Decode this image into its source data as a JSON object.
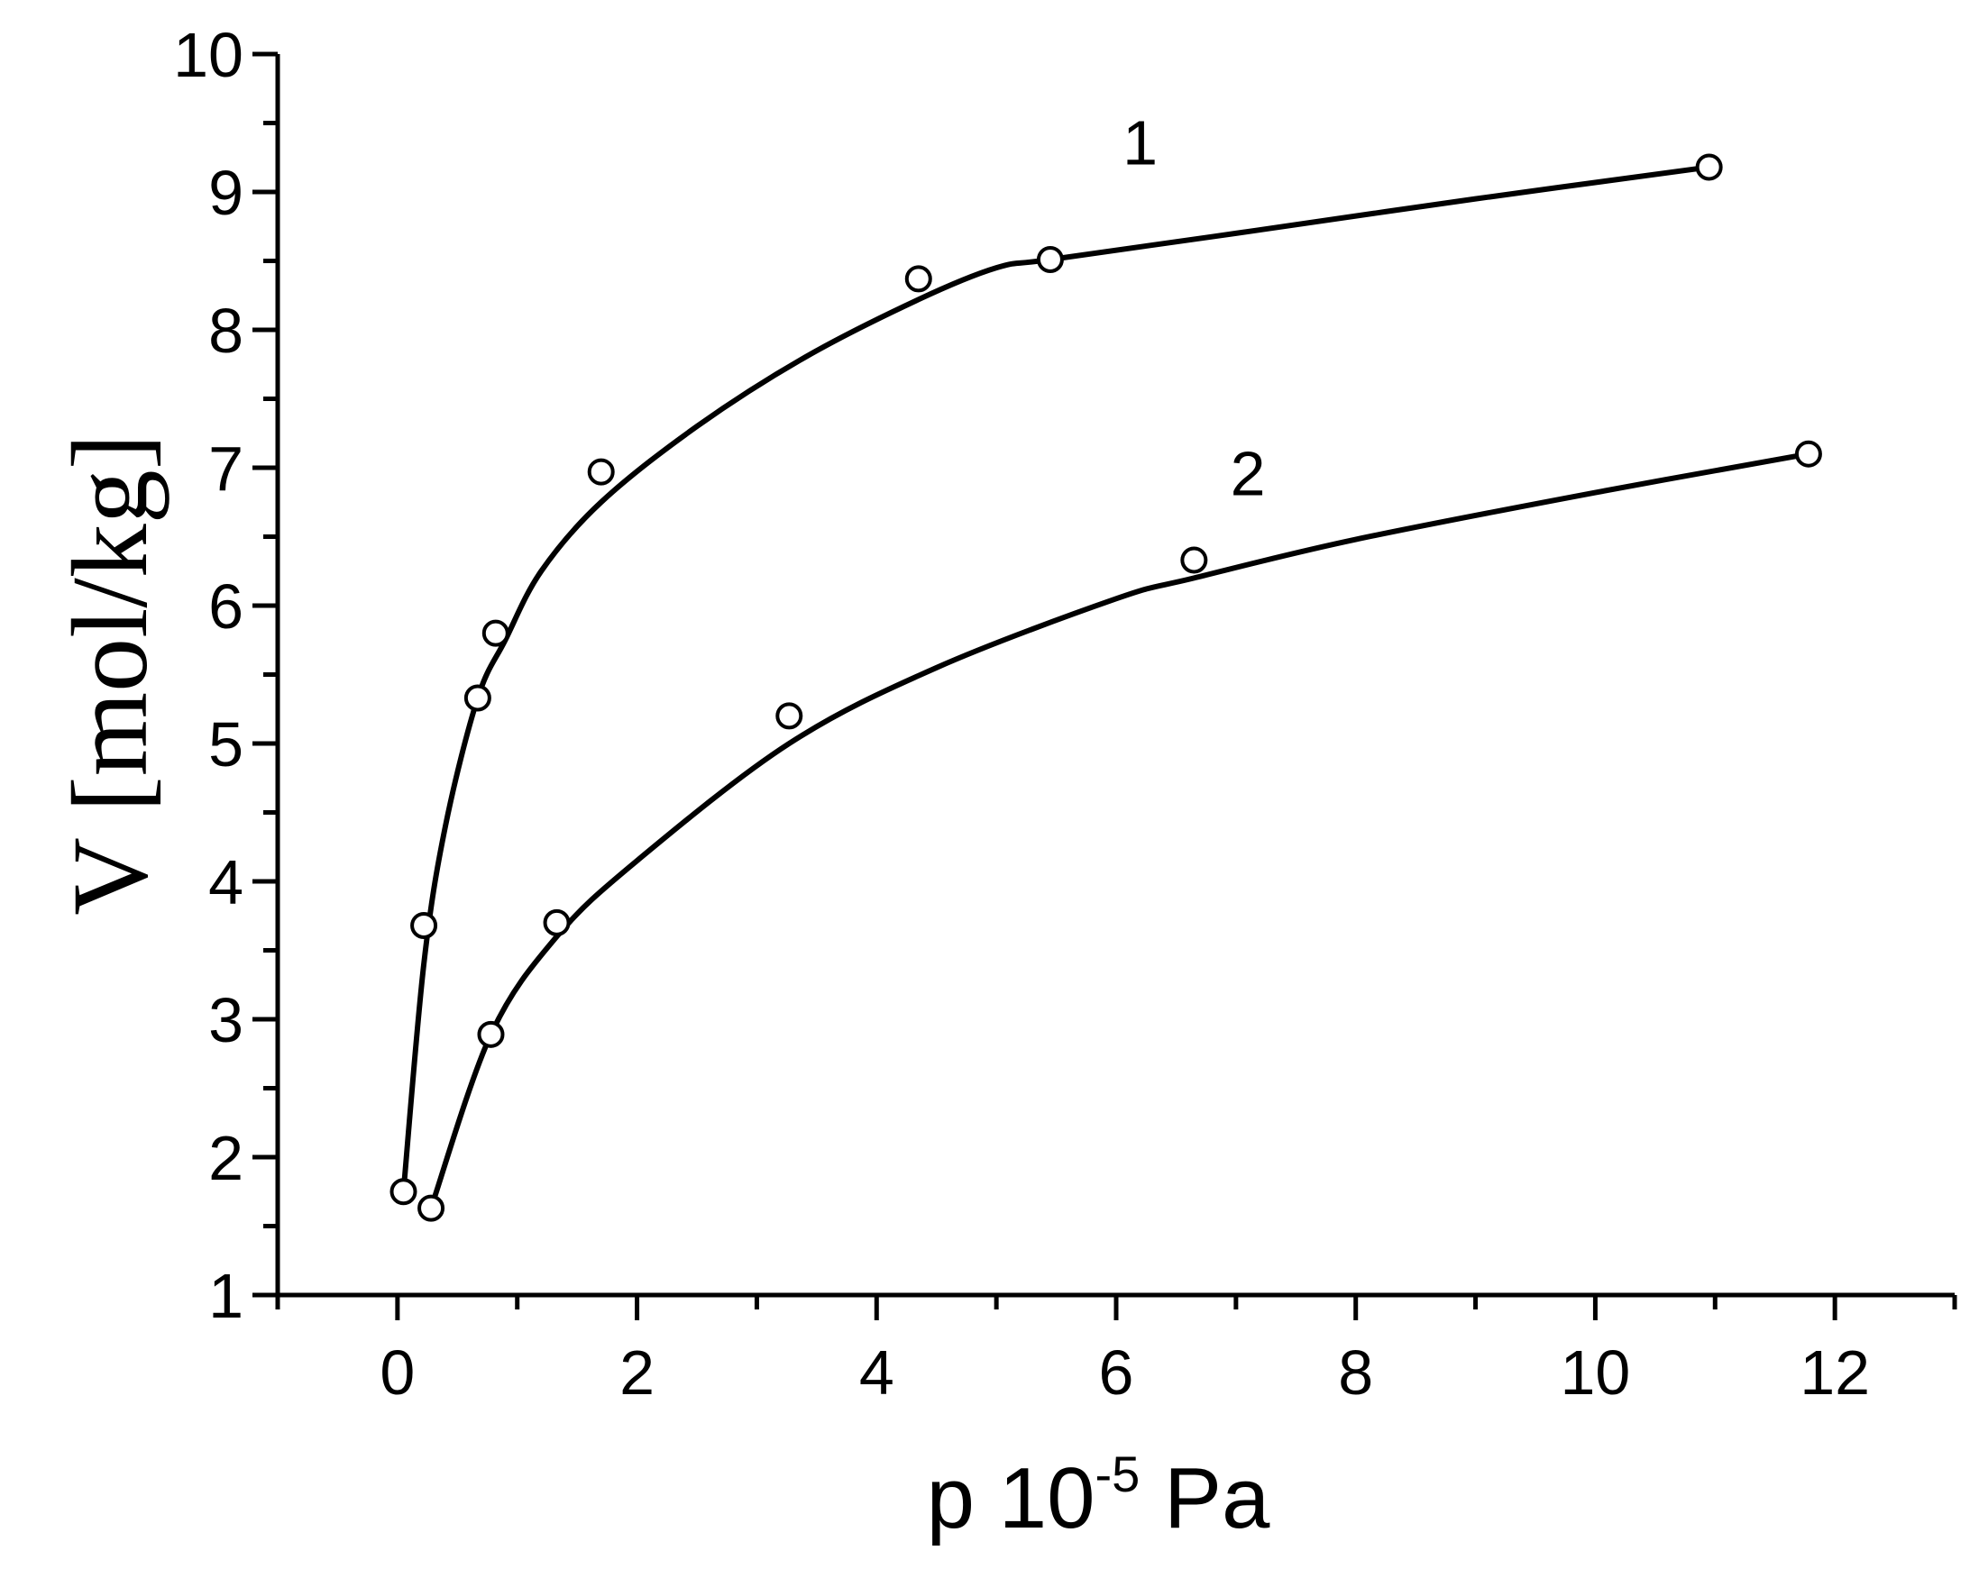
{
  "chart_data": {
    "type": "scatter",
    "xlabel_main": "p 10",
    "xlabel_sup": "-5",
    "xlabel_unit": " Pa",
    "ylabel": "V [mol/kg]",
    "xlim": [
      -1,
      13
    ],
    "ylim": [
      1,
      10
    ],
    "x_ticks": [
      0,
      2,
      4,
      6,
      8,
      10,
      12
    ],
    "y_ticks": [
      1,
      2,
      3,
      4,
      5,
      6,
      7,
      8,
      9,
      10
    ],
    "grid": false,
    "series": [
      {
        "name": "1",
        "label_pos": [
          6.2,
          9.2
        ],
        "points": [
          [
            0.05,
            1.75
          ],
          [
            0.22,
            3.68
          ],
          [
            0.67,
            5.33
          ],
          [
            0.82,
            5.8
          ],
          [
            1.7,
            6.97
          ],
          [
            4.35,
            8.37
          ],
          [
            5.45,
            8.51
          ],
          [
            10.95,
            9.18
          ]
        ],
        "curve": [
          [
            0.05,
            1.75
          ],
          [
            0.22,
            3.4
          ],
          [
            0.4,
            4.4
          ],
          [
            0.67,
            5.33
          ],
          [
            0.9,
            5.75
          ],
          [
            1.2,
            6.25
          ],
          [
            1.7,
            6.75
          ],
          [
            2.5,
            7.3
          ],
          [
            3.4,
            7.8
          ],
          [
            4.35,
            8.22
          ],
          [
            5.0,
            8.45
          ],
          [
            5.45,
            8.51
          ],
          [
            7.0,
            8.7
          ],
          [
            9.0,
            8.95
          ],
          [
            10.95,
            9.18
          ]
        ]
      },
      {
        "name": "2",
        "label_pos": [
          7.1,
          6.8
        ],
        "points": [
          [
            0.28,
            1.63
          ],
          [
            0.78,
            2.89
          ],
          [
            1.33,
            3.7
          ],
          [
            3.27,
            5.2
          ],
          [
            6.65,
            6.33
          ],
          [
            11.78,
            7.1
          ]
        ],
        "curve": [
          [
            0.28,
            1.63
          ],
          [
            0.78,
            2.89
          ],
          [
            1.33,
            3.6
          ],
          [
            2.0,
            4.15
          ],
          [
            3.27,
            5.0
          ],
          [
            4.5,
            5.55
          ],
          [
            6.0,
            6.05
          ],
          [
            6.65,
            6.2
          ],
          [
            8.0,
            6.48
          ],
          [
            10.0,
            6.82
          ],
          [
            11.78,
            7.1
          ]
        ]
      }
    ]
  }
}
